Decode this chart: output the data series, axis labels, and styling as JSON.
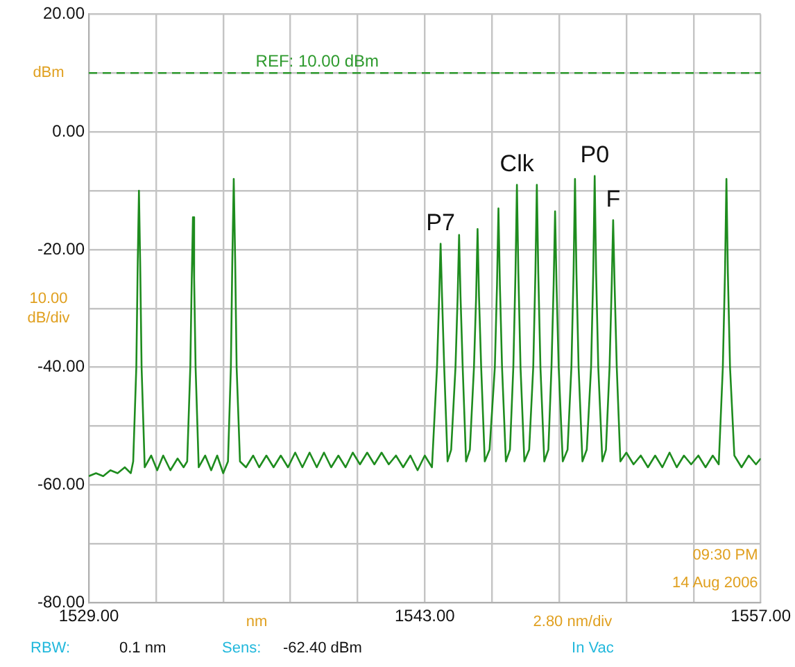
{
  "chart_data": {
    "type": "line",
    "xlabel": "nm",
    "ylabel": "dBm",
    "x": [
      1529.0,
      1529.3,
      1529.6,
      1529.9,
      1530.2,
      1530.5,
      1530.75,
      1530.85,
      1530.98,
      1531.04,
      1531.09,
      1531.14,
      1531.2,
      1531.33,
      1531.6,
      1531.85,
      1532.1,
      1532.4,
      1532.7,
      1532.95,
      1533.1,
      1533.23,
      1533.29,
      1533.34,
      1533.39,
      1533.45,
      1533.58,
      1533.85,
      1534.1,
      1534.35,
      1534.6,
      1534.8,
      1534.92,
      1534.98,
      1535.04,
      1535.1,
      1535.16,
      1535.3,
      1535.55,
      1535.85,
      1536.1,
      1536.4,
      1536.7,
      1537.0,
      1537.3,
      1537.6,
      1537.9,
      1538.2,
      1538.5,
      1538.8,
      1539.1,
      1539.4,
      1539.7,
      1540.0,
      1540.3,
      1540.6,
      1540.9,
      1541.2,
      1541.5,
      1541.8,
      1542.1,
      1542.4,
      1542.7,
      1543.0,
      1543.3,
      1543.51,
      1543.6,
      1543.66,
      1543.72,
      1543.81,
      1543.95,
      1544.1,
      1544.28,
      1544.37,
      1544.43,
      1544.49,
      1544.58,
      1544.72,
      1544.88,
      1545.05,
      1545.14,
      1545.2,
      1545.26,
      1545.35,
      1545.5,
      1545.7,
      1545.92,
      1546.01,
      1546.07,
      1546.13,
      1546.22,
      1546.38,
      1546.55,
      1546.69,
      1546.78,
      1546.84,
      1546.9,
      1546.99,
      1547.15,
      1547.35,
      1547.52,
      1547.61,
      1547.67,
      1547.73,
      1547.82,
      1547.98,
      1548.15,
      1548.28,
      1548.37,
      1548.43,
      1548.49,
      1548.58,
      1548.75,
      1548.95,
      1549.11,
      1549.2,
      1549.26,
      1549.32,
      1549.41,
      1549.57,
      1549.75,
      1549.93,
      1550.02,
      1550.08,
      1550.14,
      1550.23,
      1550.4,
      1550.55,
      1550.7,
      1550.79,
      1550.85,
      1550.91,
      1551.0,
      1551.15,
      1551.4,
      1551.7,
      1552.0,
      1552.3,
      1552.6,
      1552.9,
      1553.2,
      1553.5,
      1553.8,
      1554.1,
      1554.4,
      1554.7,
      1555.0,
      1555.25,
      1555.42,
      1555.51,
      1555.57,
      1555.63,
      1555.72,
      1555.9,
      1556.2,
      1556.5,
      1556.8,
      1557.0
    ],
    "series": [
      {
        "color": "#1e8c1e",
        "values": [
          -58.5,
          -58,
          -58.5,
          -57.5,
          -58,
          -57,
          -58,
          -56,
          -40,
          -22,
          -10,
          -22,
          -40,
          -57,
          -55,
          -57.5,
          -55,
          -57.5,
          -55.5,
          -57,
          -56,
          -40,
          -25,
          -14.5,
          -25,
          -40,
          -57,
          -55,
          -57.5,
          -55,
          -58,
          -56,
          -40,
          -22,
          -8,
          -22,
          -40,
          -56,
          -57,
          -55,
          -57,
          -55,
          -57,
          -55,
          -57,
          -54.5,
          -57,
          -54.5,
          -57,
          -54.5,
          -57,
          -55,
          -57,
          -54.5,
          -56.5,
          -54.5,
          -56.5,
          -54.5,
          -56.5,
          -55,
          -57,
          -55,
          -57.5,
          -55,
          -57,
          -40,
          -28,
          -19,
          -28,
          -40,
          -56,
          -54,
          -40,
          -28,
          -17.5,
          -28,
          -40,
          -56,
          -54,
          -40,
          -28,
          -16.5,
          -28,
          -40,
          -56,
          -54,
          -40,
          -26,
          -13,
          -26,
          -40,
          -56,
          -54,
          -40,
          -24,
          -9,
          -24,
          -40,
          -56,
          -54,
          -40,
          -24,
          -9,
          -24,
          -40,
          -56,
          -54,
          -40,
          -26,
          -13.5,
          -26,
          -40,
          -56,
          -54,
          -40,
          -24,
          -8,
          -24,
          -40,
          -56,
          -54,
          -40,
          -24,
          -7.5,
          -24,
          -40,
          -56,
          -54,
          -40,
          -26,
          -15,
          -26,
          -40,
          -56,
          -54.5,
          -56.5,
          -55,
          -57,
          -55,
          -57,
          -54.5,
          -57,
          -55,
          -56.5,
          -55,
          -57,
          -55,
          -56.5,
          -40,
          -24,
          -8,
          -24,
          -40,
          -55,
          -57,
          -55,
          -56.5,
          -55.5
        ]
      }
    ],
    "xlim": [
      1529,
      1557
    ],
    "xticks": [
      {
        "value": 1529,
        "label": "1529.00"
      },
      {
        "value": 1531.8,
        "label": null
      },
      {
        "value": 1534.6,
        "label": null
      },
      {
        "value": 1537.4,
        "label": null
      },
      {
        "value": 1540.2,
        "label": null
      },
      {
        "value": 1543,
        "label": "1543.00"
      },
      {
        "value": 1545.8,
        "label": null
      },
      {
        "value": 1548.6,
        "label": null
      },
      {
        "value": 1551.4,
        "label": null
      },
      {
        "value": 1554.2,
        "label": null
      },
      {
        "value": 1557,
        "label": "1557.00"
      }
    ],
    "ylim": [
      -80,
      20
    ],
    "yticks": [
      {
        "value": 20,
        "label": "20.00"
      },
      {
        "value": 10,
        "label": null
      },
      {
        "value": 0,
        "label": "0.00"
      },
      {
        "value": -10,
        "label": null
      },
      {
        "value": -20,
        "label": "-20.00"
      },
      {
        "value": -30,
        "label": null
      },
      {
        "value": -40,
        "label": "-40.00"
      },
      {
        "value": -50,
        "label": null
      },
      {
        "value": -60,
        "label": "-60.00"
      },
      {
        "value": -70,
        "label": null
      },
      {
        "value": -80,
        "label": "-80.00"
      }
    ],
    "grid": true,
    "legend": false,
    "marker": "none",
    "line_style": "solid",
    "ref_lines": [
      {
        "axis": "y",
        "value": 10,
        "label": "REF: 10.00 dBm",
        "color": "#2e9a2e",
        "line_style": "dashed"
      }
    ],
    "annotations": [
      "10.00 dB/div",
      "2.80 nm/div",
      "09:30 PM",
      "14 Aug 2006",
      "RBW:",
      "0.1 nm",
      "Sens:",
      "-62.40 dBm",
      "In Vac",
      {
        "text": "P7",
        "x": 1543.66,
        "y": -19
      },
      {
        "text": "Clk",
        "x": 1546.84,
        "y": -9
      },
      {
        "text": "P0",
        "x": 1550.08,
        "y": -7.5
      },
      {
        "text": "F",
        "x": 1550.85,
        "y": -15
      }
    ]
  }
}
